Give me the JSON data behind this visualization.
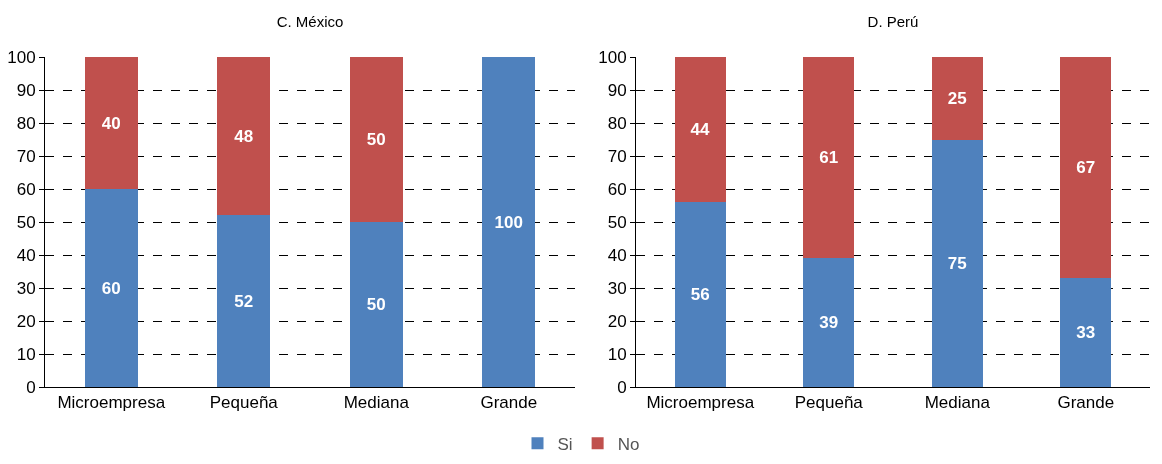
{
  "chart_data": [
    {
      "type": "bar",
      "title": "C. México",
      "stacked": true,
      "categories": [
        "Microempresa",
        "Pequeña",
        "Mediana",
        "Grande"
      ],
      "series": [
        {
          "color": "#4f81bd",
          "values": [
            60,
            52,
            50,
            100
          ],
          "value_labels": [
            "60",
            "52",
            "50",
            "100"
          ]
        },
        {
          "color": "#c0504d",
          "values": [
            40,
            48,
            50,
            null
          ],
          "value_labels": [
            "40",
            "48",
            "50",
            null
          ]
        }
      ],
      "ylim": [
        0,
        100
      ],
      "yticks": [
        0,
        10,
        20,
        30,
        40,
        50,
        60,
        70,
        80,
        90,
        100
      ],
      "grid": "y",
      "legend": false
    },
    {
      "type": "bar",
      "title": "D. Perú",
      "stacked": true,
      "categories": [
        "Microempresa",
        "Pequeña",
        "Mediana",
        "Grande"
      ],
      "series": [
        {
          "name": "Si",
          "color": "#4f81bd",
          "values": [
            56,
            39,
            75,
            33
          ],
          "value_labels": [
            "56",
            "39",
            "75",
            "33"
          ]
        },
        {
          "name": "No",
          "color": "#c0504d",
          "values": [
            44,
            61,
            25,
            67
          ],
          "value_labels": [
            "44",
            "61",
            "25",
            "67"
          ]
        }
      ],
      "ylim": [
        0,
        100
      ],
      "yticks": [
        0,
        10,
        20,
        30,
        40,
        50,
        60,
        70,
        80,
        90,
        100
      ],
      "grid": "y",
      "legend": "bottom"
    }
  ]
}
